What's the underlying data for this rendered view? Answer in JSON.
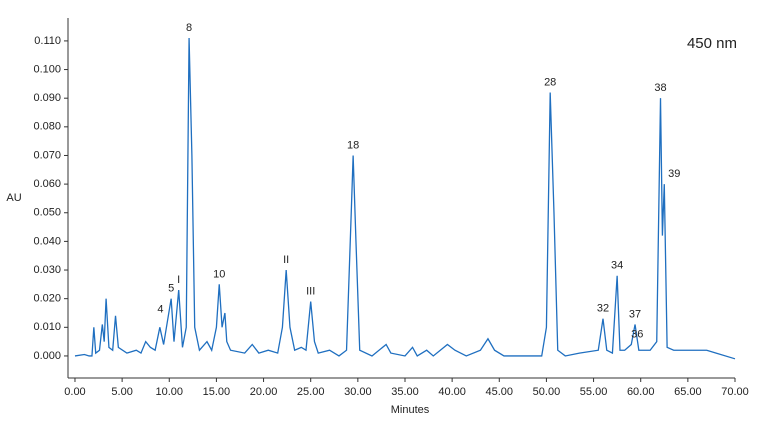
{
  "chart_data": {
    "type": "line",
    "y_label": "AU",
    "x_label": "Minutes",
    "wavelength_label": "450 nm",
    "color": "#1f6fc0",
    "xlim": [
      -0.74,
      70
    ],
    "ylim": [
      -0.0077,
      0.118
    ],
    "xticks": [
      {
        "value": 0,
        "label": "0.00"
      },
      {
        "value": 5,
        "label": "5.00"
      },
      {
        "value": 10,
        "label": "10.00"
      },
      {
        "value": 15,
        "label": "15.00"
      },
      {
        "value": 20,
        "label": "20.00"
      },
      {
        "value": 25,
        "label": "25.00"
      },
      {
        "value": 30,
        "label": "30.00"
      },
      {
        "value": 35,
        "label": "35.00"
      },
      {
        "value": 40,
        "label": "40.00"
      },
      {
        "value": 45,
        "label": "45.00"
      },
      {
        "value": 50,
        "label": "50.00"
      },
      {
        "value": 55,
        "label": "55.00"
      },
      {
        "value": 60,
        "label": "60.00"
      },
      {
        "value": 65,
        "label": "65.00"
      },
      {
        "value": 70,
        "label": "70.00"
      }
    ],
    "yticks": [
      {
        "value": 0,
        "label": "0.000"
      },
      {
        "value": 0.01,
        "label": "0.010"
      },
      {
        "value": 0.02,
        "label": "0.020"
      },
      {
        "value": 0.03,
        "label": "0.030"
      },
      {
        "value": 0.04,
        "label": "0.040"
      },
      {
        "value": 0.05,
        "label": "0.050"
      },
      {
        "value": 0.06,
        "label": "0.060"
      },
      {
        "value": 0.07,
        "label": "0.070"
      },
      {
        "value": 0.08,
        "label": "0.080"
      },
      {
        "value": 0.09,
        "label": "0.090"
      },
      {
        "value": 0.1,
        "label": "0.100"
      },
      {
        "value": 0.11,
        "label": "0.110"
      }
    ],
    "x": [
      0,
      1,
      1.5,
      1.8,
      2.0,
      2.2,
      2.6,
      2.9,
      3.1,
      3.3,
      3.6,
      4.0,
      4.3,
      4.6,
      5.5,
      6.5,
      7.0,
      7.5,
      8.0,
      8.5,
      9.0,
      9.4,
      9.8,
      10.2,
      10.5,
      11.0,
      11.4,
      11.8,
      12.1,
      12.4,
      12.7,
      13.2,
      14.0,
      14.5,
      15.0,
      15.3,
      15.6,
      15.9,
      16.1,
      16.5,
      18.0,
      18.8,
      19.5,
      20.5,
      21.5,
      22.0,
      22.4,
      22.8,
      23.3,
      24.0,
      24.5,
      25.0,
      25.4,
      25.8,
      27.0,
      28.0,
      28.8,
      29.3,
      29.5,
      29.8,
      30.2,
      31.5,
      33.0,
      33.5,
      35.0,
      35.8,
      36.3,
      37.3,
      38.0,
      39.5,
      40.3,
      41.5,
      43.0,
      43.8,
      44.5,
      45.5,
      49.5,
      50.0,
      50.4,
      50.8,
      51.2,
      52.0,
      53.5,
      55.5,
      56.0,
      56.4,
      57.0,
      57.5,
      57.8,
      58.3,
      59.0,
      59.4,
      59.8,
      61.0,
      61.7,
      62.1,
      62.3,
      62.5,
      62.8,
      63.5,
      67.0,
      68.0,
      70.0
    ],
    "values": [
      0,
      0.0005,
      0,
      0,
      0.01,
      0.001,
      0.002,
      0.011,
      0.005,
      0.02,
      0.003,
      0.002,
      0.014,
      0.003,
      0.001,
      0.002,
      0.001,
      0.005,
      0.003,
      0.002,
      0.01,
      0.004,
      0.012,
      0.02,
      0.005,
      0.023,
      0.003,
      0.01,
      0.111,
      0.07,
      0.01,
      0.002,
      0.005,
      0.002,
      0.01,
      0.025,
      0.01,
      0.015,
      0.005,
      0.002,
      0.001,
      0.004,
      0.001,
      0.002,
      0.001,
      0.01,
      0.03,
      0.01,
      0.002,
      0.003,
      0.002,
      0.019,
      0.005,
      0.001,
      0.002,
      0,
      0.002,
      0.05,
      0.07,
      0.04,
      0.002,
      0,
      0.004,
      0.001,
      0,
      0.003,
      0,
      0.002,
      0,
      0.004,
      0.002,
      0,
      0.002,
      0.006,
      0.002,
      0,
      0,
      0.01,
      0.092,
      0.05,
      0.002,
      0,
      0.001,
      0.002,
      0.013,
      0.002,
      0.001,
      0.028,
      0.002,
      0.002,
      0.004,
      0.011,
      0.002,
      0.002,
      0.005,
      0.09,
      0.042,
      0.06,
      0.003,
      0.002,
      0.002,
      0.001,
      -0.001
    ],
    "annotations": [
      {
        "label": "4",
        "x": 9.8,
        "y": 0.012
      },
      {
        "label": "5",
        "x": 10.2,
        "y": 0.02
      },
      {
        "label": "I",
        "x": 11.0,
        "y": 0.023
      },
      {
        "label": "8",
        "x": 12.1,
        "y": 0.111
      },
      {
        "label": "10",
        "x": 15.3,
        "y": 0.025
      },
      {
        "label": "II",
        "x": 22.4,
        "y": 0.03
      },
      {
        "label": "III",
        "x": 25.0,
        "y": 0.019
      },
      {
        "label": "18",
        "x": 29.5,
        "y": 0.07
      },
      {
        "label": "28",
        "x": 50.4,
        "y": 0.092
      },
      {
        "label": "32",
        "x": 56.0,
        "y": 0.013
      },
      {
        "label": "34",
        "x": 57.5,
        "y": 0.028
      },
      {
        "label": "36",
        "x": 59.0,
        "y": 0.004
      },
      {
        "label": "37",
        "x": 59.4,
        "y": 0.011
      },
      {
        "label": "38",
        "x": 62.1,
        "y": 0.09
      },
      {
        "label": "39",
        "x": 62.5,
        "y": 0.06
      }
    ]
  }
}
